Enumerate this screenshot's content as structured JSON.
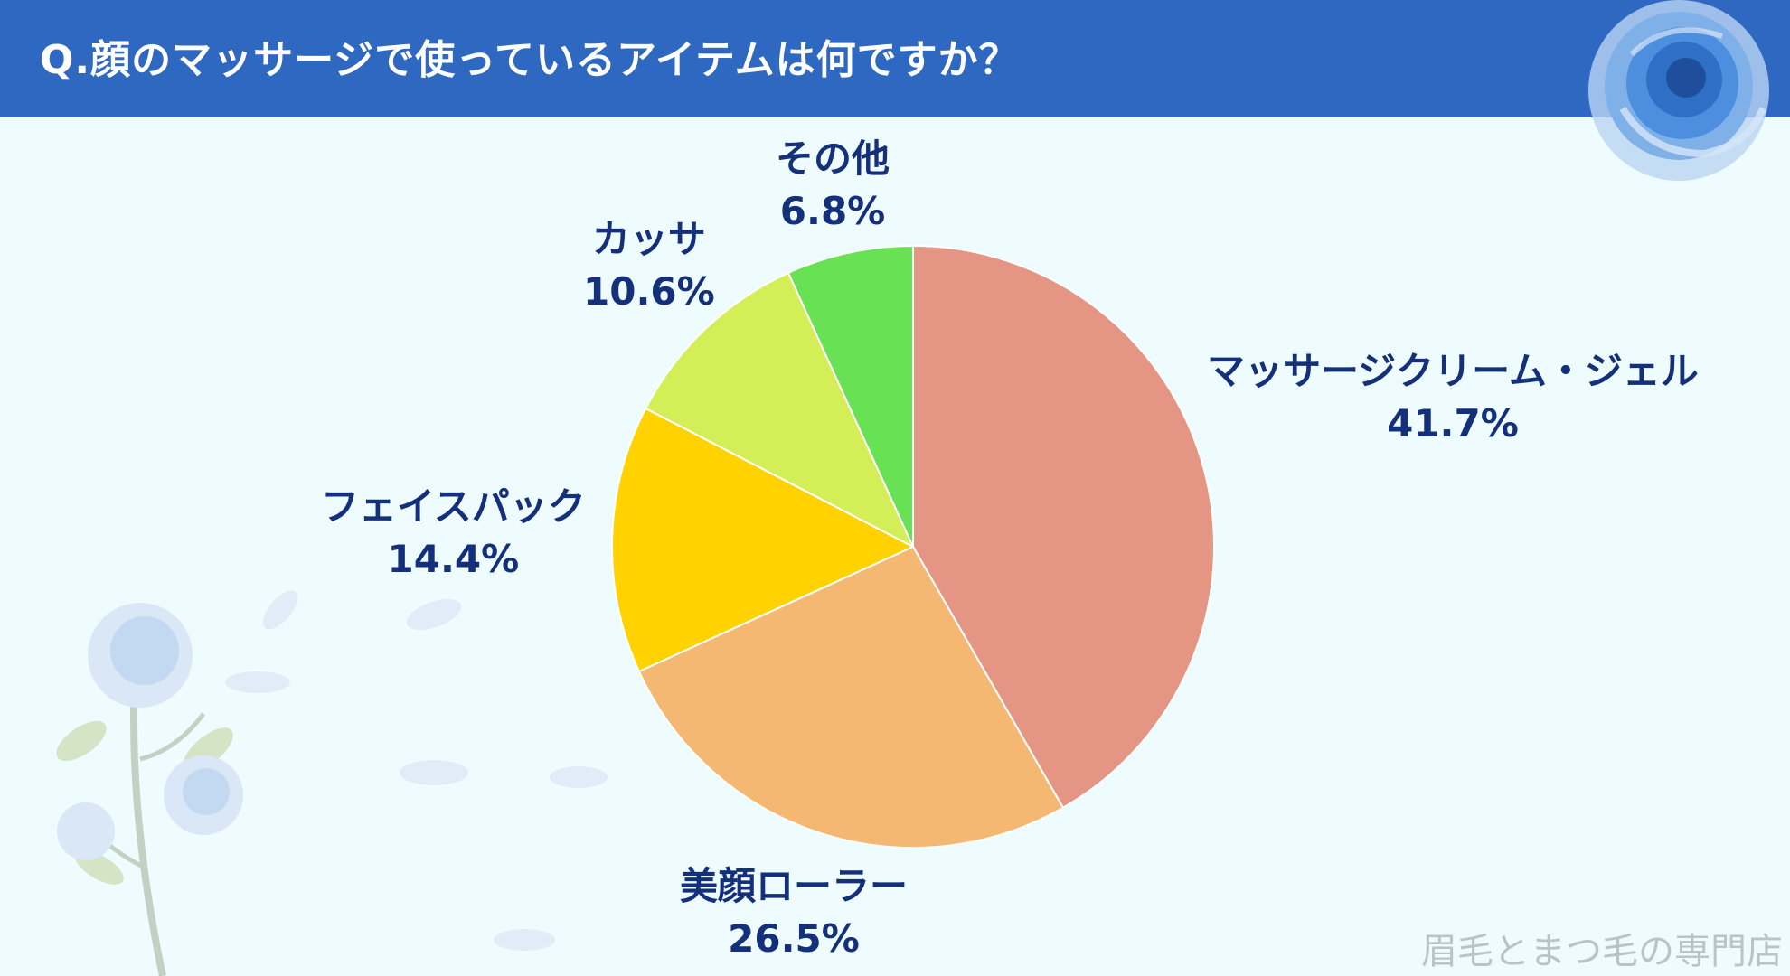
{
  "title": "Q.顔のマッサージで使っているアイテムは何ですか？",
  "watermark": "眉毛とまつ毛の専門店",
  "colors": {
    "header": "#2e68c0",
    "background": "#eefcff",
    "label_text": "#14307a"
  },
  "chart_data": {
    "type": "pie",
    "title": "Q.顔のマッサージで使っているアイテムは何ですか？",
    "start": "12 o'clock",
    "direction": "clockwise",
    "slices": [
      {
        "name": "マッサージクリーム・ジェル",
        "value": 41.7,
        "value_label": "41.7%",
        "color": "#e59583"
      },
      {
        "name": "美顔ローラー",
        "value": 26.5,
        "value_label": "26.5%",
        "color": "#f5b872"
      },
      {
        "name": "フェイスパック",
        "value": 14.4,
        "value_label": "14.4%",
        "color": "#ffd200"
      },
      {
        "name": "カッサ",
        "value": 10.6,
        "value_label": "10.6%",
        "color": "#d3ee56"
      },
      {
        "name": "その他",
        "value": 6.8,
        "value_label": "6.8%",
        "color": "#68e155"
      }
    ]
  }
}
